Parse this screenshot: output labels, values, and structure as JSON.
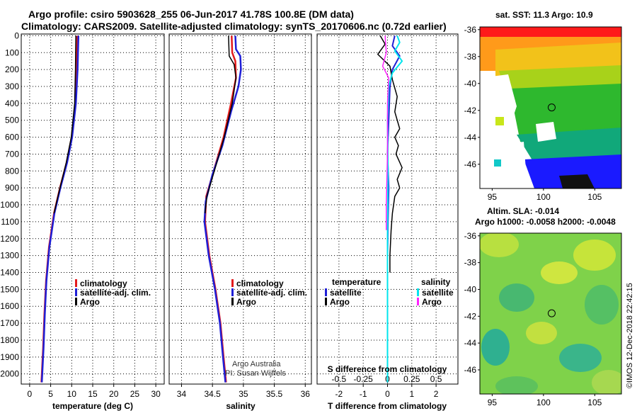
{
  "header": {
    "line1": "Argo profile: csiro 5903628_255 06-Jun-2017 41.78S 100.8E (DM data)",
    "line2": "Climatology: CARS2009. Satellite-adjusted climatology: synTS_20170606.nc (0.72d earlier)"
  },
  "colors": {
    "climatology": "#e31a1c",
    "satellite": "#1f1fd6",
    "argo": "#000000",
    "satellite_salinity": "#00e5ee",
    "argo_salinity": "#ff22ff"
  },
  "chart_data": [
    {
      "type": "line",
      "name": "temperature-profile",
      "xlabel": "temperature (deg C)",
      "xlim": [
        -2,
        32
      ],
      "ylim": [
        2060,
        -10
      ],
      "xticks": [
        0,
        5,
        10,
        15,
        20,
        25,
        30
      ],
      "yticks": [
        0,
        100,
        200,
        300,
        400,
        500,
        600,
        700,
        800,
        900,
        1000,
        1100,
        1200,
        1300,
        1400,
        1500,
        1600,
        1700,
        1800,
        1900,
        2000
      ],
      "legend": {
        "position": "lower-right",
        "entries": [
          "climatology",
          "satellite-adj. clim.",
          "Argo"
        ]
      },
      "series": [
        {
          "name": "climatology",
          "color_key": "climatology",
          "width": 2.5,
          "points": [
            [
              11.3,
              0
            ],
            [
              11.2,
              200
            ],
            [
              10.9,
              400
            ],
            [
              10.0,
              600
            ],
            [
              8.8,
              750
            ],
            [
              7.2,
              900
            ],
            [
              5.8,
              1050
            ],
            [
              4.6,
              1250
            ],
            [
              3.9,
              1450
            ],
            [
              3.5,
              1650
            ],
            [
              3.2,
              1850
            ],
            [
              2.8,
              2050
            ]
          ]
        },
        {
          "name": "satellite-adj. clim.",
          "color_key": "satellite",
          "width": 2.5,
          "points": [
            [
              11.6,
              0
            ],
            [
              11.4,
              200
            ],
            [
              11.0,
              400
            ],
            [
              10.1,
              600
            ],
            [
              8.9,
              750
            ],
            [
              7.3,
              900
            ],
            [
              5.9,
              1050
            ],
            [
              4.7,
              1250
            ],
            [
              4.0,
              1450
            ],
            [
              3.6,
              1650
            ],
            [
              3.3,
              1850
            ],
            [
              2.9,
              2050
            ]
          ]
        },
        {
          "name": "Argo",
          "color_key": "argo",
          "width": 1.5,
          "points": [
            [
              11.0,
              0
            ],
            [
              10.9,
              200
            ],
            [
              10.7,
              400
            ],
            [
              9.9,
              600
            ],
            [
              8.7,
              750
            ],
            [
              7.2,
              900
            ],
            [
              5.8,
              1050
            ]
          ]
        }
      ]
    },
    {
      "type": "line",
      "name": "salinity-profile",
      "xlabel": "salinity",
      "xlim": [
        33.8,
        36.1
      ],
      "ylim": [
        2060,
        -10
      ],
      "xticks": [
        34,
        34.5,
        35,
        35.5,
        36
      ],
      "yticks": [
        0,
        100,
        200,
        300,
        400,
        500,
        600,
        700,
        800,
        900,
        1000,
        1100,
        1200,
        1300,
        1400,
        1500,
        1600,
        1700,
        1800,
        1900,
        2000
      ],
      "legend": {
        "position": "lower-right",
        "entries": [
          "climatology",
          "satellite-adj. clim.",
          "Argo"
        ]
      },
      "credit": [
        "Argo Australia",
        "PI: Susan Wijffels"
      ],
      "series": [
        {
          "name": "climatology",
          "color_key": "climatology",
          "width": 2.5,
          "points": [
            [
              34.81,
              0
            ],
            [
              34.82,
              100
            ],
            [
              34.87,
              150
            ],
            [
              34.88,
              250
            ],
            [
              34.8,
              400
            ],
            [
              34.68,
              600
            ],
            [
              34.52,
              800
            ],
            [
              34.4,
              950
            ],
            [
              34.38,
              1100
            ],
            [
              34.45,
              1300
            ],
            [
              34.55,
              1500
            ],
            [
              34.63,
              1700
            ],
            [
              34.68,
              1900
            ],
            [
              34.72,
              2050
            ]
          ]
        },
        {
          "name": "satellite-adj. clim.",
          "color_key": "satellite",
          "width": 2.5,
          "points": [
            [
              34.87,
              0
            ],
            [
              34.88,
              80
            ],
            [
              34.95,
              120
            ],
            [
              34.96,
              200
            ],
            [
              34.92,
              300
            ],
            [
              34.8,
              450
            ],
            [
              34.66,
              650
            ],
            [
              34.5,
              820
            ],
            [
              34.39,
              980
            ],
            [
              34.37,
              1100
            ],
            [
              34.44,
              1300
            ],
            [
              34.54,
              1500
            ],
            [
              34.62,
              1700
            ],
            [
              34.67,
              1900
            ],
            [
              34.71,
              2050
            ]
          ]
        },
        {
          "name": "Argo",
          "color_key": "argo",
          "width": 1.5,
          "points": [
            [
              34.76,
              0
            ],
            [
              34.77,
              120
            ],
            [
              34.85,
              170
            ],
            [
              34.88,
              250
            ],
            [
              34.82,
              400
            ],
            [
              34.69,
              600
            ],
            [
              34.53,
              800
            ],
            [
              34.41,
              950
            ],
            [
              34.38,
              1050
            ]
          ]
        }
      ]
    },
    {
      "type": "line",
      "name": "difference-from-climatology",
      "xlabel": "T difference from climatology",
      "xlabel2": "S difference from climatology",
      "xlim": [
        -2.9,
        2.9
      ],
      "ylim": [
        2060,
        -10
      ],
      "xticks": [
        -2,
        -1,
        0,
        1,
        2
      ],
      "x2ticks": [
        "-0.5",
        "-0.25",
        "0",
        "0.25",
        "0.5"
      ],
      "x2tick_positions": [
        -2,
        -1,
        0,
        1,
        2
      ],
      "yticks": [
        0,
        100,
        200,
        300,
        400,
        500,
        600,
        700,
        800,
        900,
        1000,
        1100,
        1200,
        1300,
        1400,
        1500,
        1600,
        1700,
        1800,
        1900,
        2000
      ],
      "legend": {
        "temperature_heading": "temperature",
        "salinity_heading": "salinity",
        "temperature_entries": [
          "satellite",
          "Argo"
        ],
        "salinity_entries": [
          "satellite",
          "Argo"
        ]
      },
      "series": [
        {
          "name": "T satellite",
          "color_key": "satellite",
          "width": 2.0,
          "points": [
            [
              0.3,
              0
            ],
            [
              0.2,
              60
            ],
            [
              0.5,
              120
            ],
            [
              0.2,
              200
            ],
            [
              0.1,
              300
            ],
            [
              0.05,
              500
            ],
            [
              0.0,
              700
            ],
            [
              0.05,
              900
            ],
            [
              0.02,
              1100
            ],
            [
              0.0,
              1300
            ],
            [
              0.0,
              1600
            ],
            [
              0.0,
              2050
            ]
          ]
        },
        {
          "name": "T Argo",
          "color_key": "argo",
          "width": 1.5,
          "points": [
            [
              -0.3,
              0
            ],
            [
              -0.1,
              50
            ],
            [
              -0.4,
              110
            ],
            [
              0.1,
              180
            ],
            [
              0.2,
              260
            ],
            [
              0.4,
              360
            ],
            [
              0.3,
              450
            ],
            [
              0.5,
              550
            ],
            [
              0.3,
              600
            ],
            [
              0.45,
              650
            ],
            [
              0.35,
              700
            ],
            [
              0.6,
              780
            ],
            [
              0.4,
              850
            ],
            [
              0.5,
              900
            ],
            [
              0.3,
              950
            ],
            [
              0.2,
              1050
            ],
            [
              0.15,
              1150
            ],
            [
              0.1,
              1300
            ],
            [
              0.1,
              1400
            ]
          ]
        },
        {
          "name": "S satellite",
          "color_key": "satellite_salinity",
          "width": 2.0,
          "points": [
            [
              0.4,
              0
            ],
            [
              0.5,
              40
            ],
            [
              0.3,
              90
            ],
            [
              0.6,
              150
            ],
            [
              0.2,
              220
            ],
            [
              0.05,
              300
            ],
            [
              0.0,
              500
            ],
            [
              0.02,
              800
            ],
            [
              0.0,
              1200
            ],
            [
              0.0,
              1600
            ],
            [
              0.0,
              2050
            ]
          ]
        },
        {
          "name": "S Argo",
          "color_key": "argo_salinity",
          "width": 1.5,
          "points": [
            [
              -0.1,
              0
            ],
            [
              -0.05,
              100
            ],
            [
              -0.2,
              180
            ],
            [
              0.05,
              250
            ],
            [
              0.0,
              400
            ],
            [
              0.0,
              700
            ],
            [
              -0.05,
              1000
            ],
            [
              -0.05,
              1150
            ]
          ]
        }
      ]
    },
    {
      "type": "heatmap",
      "name": "sst-map",
      "title": "sat. SST: 11.3 Argo: 10.9",
      "xlim": [
        93.8,
        107.6
      ],
      "ylim": [
        -47.8,
        -35.8
      ],
      "xticks": [
        95,
        100,
        105
      ],
      "yticks": [
        -36,
        -38,
        -40,
        -42,
        -44,
        -46
      ],
      "marker": {
        "lon": 100.8,
        "lat": -41.78
      }
    },
    {
      "type": "heatmap",
      "name": "sla-map",
      "title": "Altim. SLA: -0.014",
      "subtitle": "Argo h1000: -0.0058 h2000: -0.0048",
      "xlim": [
        93.8,
        107.6
      ],
      "ylim": [
        -47.8,
        -35.8
      ],
      "xticks": [
        95,
        100,
        105
      ],
      "yticks": [
        -36,
        -38,
        -40,
        -42,
        -44,
        -46
      ],
      "marker": {
        "lon": 100.8,
        "lat": -41.78
      }
    }
  ],
  "stamp": "©IMOS 12-Dec-2018 22:42:15"
}
